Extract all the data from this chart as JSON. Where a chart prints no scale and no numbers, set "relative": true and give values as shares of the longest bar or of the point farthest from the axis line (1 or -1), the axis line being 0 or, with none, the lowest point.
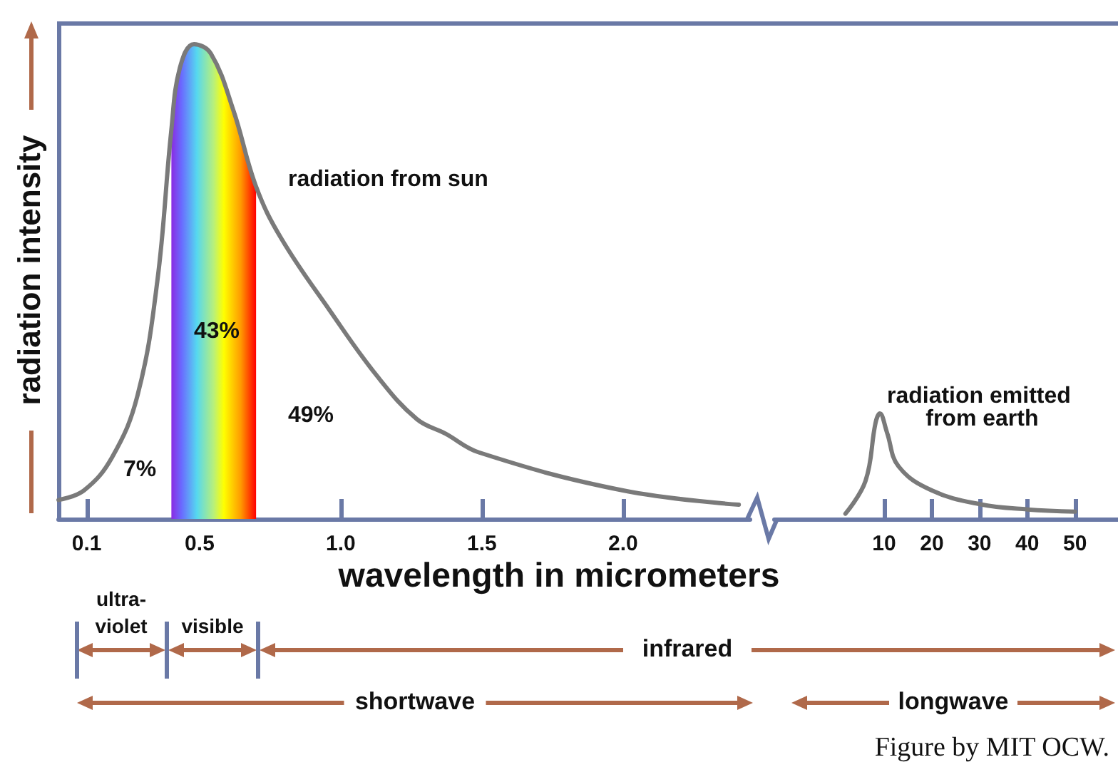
{
  "chart_data": [
    {
      "type": "line",
      "xlabel": "wavelength in micrometers",
      "ylabel": "radiation intensity",
      "relative": true,
      "x": [
        0,
        0.09,
        0.19,
        0.28,
        0.35,
        0.4,
        0.43,
        0.48,
        0.54,
        0.62,
        0.7,
        0.79,
        0.96,
        1.13,
        1.27,
        1.37,
        1.49,
        2.0,
        2.41
      ],
      "series": [
        {
          "name": "radiation from sun",
          "color": "#7a7a7a",
          "values": [
            0.04,
            0.06,
            0.13,
            0.26,
            0.5,
            0.82,
            0.95,
            1.0,
            0.98,
            0.86,
            0.7,
            0.59,
            0.44,
            0.3,
            0.21,
            0.18,
            0.14,
            0.06,
            0.03
          ]
        }
      ],
      "xlim": [
        0,
        2.45
      ],
      "xticks": [
        0.1,
        0.5,
        {
          "value": 1,
          "label": "1.0"
        },
        1.5,
        {
          "value": 2,
          "label": "2.0"
        }
      ],
      "bands": [
        {
          "axis": "x",
          "from": 0.4,
          "to": 0.7
        }
      ],
      "annotations": [
        "7%",
        "43%",
        "49%",
        "ultra-violet",
        "visible",
        "infrared",
        "shortwave",
        "longwave",
        "Figure by MIT OCW."
      ]
    },
    {
      "type": "line",
      "relative": true,
      "x": [
        1.9,
        6.1,
        8.2,
        9.1,
        10.6,
        13,
        20,
        30,
        40,
        50
      ],
      "series": [
        {
          "name": "radiation emitted from earth",
          "color": "#7a7a7a",
          "values": [
            0.05,
            0.36,
            0.91,
            1,
            0.82,
            0.5,
            0.27,
            0.14,
            0.09,
            0.07
          ]
        }
      ],
      "xlim": [
        -13,
        59
      ],
      "xticks": [
        10,
        20,
        30,
        40,
        50
      ]
    }
  ]
}
